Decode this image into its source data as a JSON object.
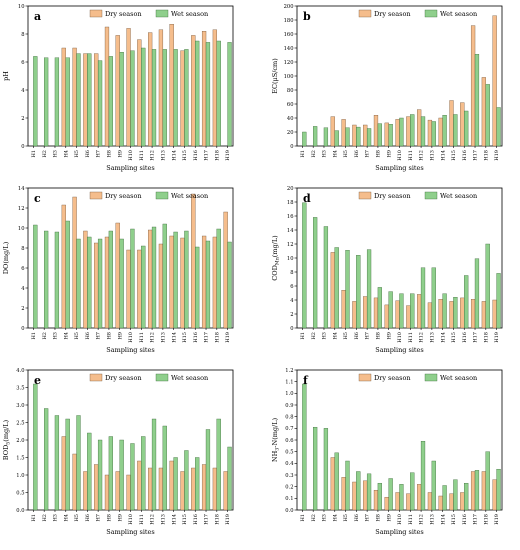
{
  "colors": {
    "dry": "#f5bd8c",
    "wet": "#8fcf8c"
  },
  "chart_data": [
    {
      "type": "bar",
      "panel": "a",
      "ylabel": "pH",
      "xlabel": "Sampling sites",
      "ylim": [
        0,
        10
      ],
      "yticks": [
        0,
        2,
        4,
        6,
        8,
        10
      ],
      "legend": "top-right",
      "categories": [
        "H1",
        "H2",
        "H3",
        "H4",
        "H5",
        "H6",
        "H7",
        "H8",
        "H9",
        "H10",
        "H11",
        "H12",
        "H13",
        "H14",
        "H15",
        "H16",
        "H17",
        "H18",
        "H19"
      ],
      "series": [
        {
          "name": "Dry season",
          "values": [
            null,
            null,
            null,
            7.0,
            7.0,
            6.6,
            6.6,
            8.5,
            7.9,
            8.4,
            7.6,
            8.1,
            8.3,
            8.7,
            6.8,
            7.9,
            8.2,
            8.3,
            null
          ]
        },
        {
          "name": "Wet season",
          "values": [
            6.4,
            6.3,
            6.3,
            6.3,
            6.6,
            6.6,
            6.1,
            6.4,
            6.7,
            6.8,
            7.0,
            6.9,
            6.9,
            6.9,
            6.9,
            7.5,
            7.4,
            7.5,
            7.4
          ]
        }
      ]
    },
    {
      "type": "bar",
      "panel": "b",
      "ylabel": "EC(μS/cm)",
      "xlabel": "Sampling sites",
      "ylim": [
        0,
        200
      ],
      "yticks": [
        0,
        20,
        40,
        60,
        80,
        100,
        120,
        140,
        160,
        180,
        200
      ],
      "legend": "top-right",
      "categories": [
        "H1",
        "H2",
        "H3",
        "H4",
        "H5",
        "H6",
        "H7",
        "H8",
        "H9",
        "H10",
        "H11",
        "H12",
        "H13",
        "H14",
        "H15",
        "H16",
        "H17",
        "H18",
        "H19"
      ],
      "series": [
        {
          "name": "Dry season",
          "values": [
            null,
            null,
            null,
            42,
            38,
            30,
            30,
            44,
            33,
            38,
            42,
            52,
            37,
            40,
            65,
            62,
            172,
            98,
            186
          ]
        },
        {
          "name": "Wet season",
          "values": [
            20,
            28,
            26,
            22,
            26,
            27,
            25,
            32,
            31,
            40,
            45,
            42,
            35,
            44,
            45,
            50,
            131,
            88,
            55
          ]
        }
      ]
    },
    {
      "type": "bar",
      "panel": "c",
      "ylabel": "DO(mg/L)",
      "xlabel": "Sampling sites",
      "ylim": [
        0,
        14
      ],
      "yticks": [
        0,
        2,
        4,
        6,
        8,
        10,
        12,
        14
      ],
      "legend": "top-right",
      "categories": [
        "H1",
        "H2",
        "H3",
        "H4",
        "H5",
        "H6",
        "H7",
        "H8",
        "H9",
        "H10",
        "H11",
        "H12",
        "H13",
        "H14",
        "H15",
        "H16",
        "H17",
        "H18",
        "H19"
      ],
      "series": [
        {
          "name": "Dry season",
          "values": [
            null,
            null,
            null,
            12.3,
            13.1,
            9.7,
            8.5,
            9.1,
            10.5,
            7.8,
            7.8,
            9.8,
            8.4,
            9.2,
            9.0,
            13.4,
            9.2,
            9.1,
            11.6
          ]
        },
        {
          "name": "Wet season",
          "values": [
            10.3,
            9.7,
            9.6,
            10.7,
            8.9,
            9.1,
            8.9,
            9.7,
            8.9,
            9.9,
            8.2,
            10.1,
            10.4,
            9.6,
            9.7,
            8.1,
            8.7,
            9.9,
            8.6
          ]
        }
      ]
    },
    {
      "type": "bar",
      "panel": "d",
      "ylabel": "COD_Mn(mg/L)",
      "xlabel": "Sampling sites",
      "ylim": [
        0,
        20
      ],
      "yticks": [
        0,
        2,
        4,
        6,
        8,
        10,
        12,
        14,
        16,
        18,
        20
      ],
      "legend": "top-right",
      "categories": [
        "H1",
        "H2",
        "H3",
        "H4",
        "H5",
        "H6",
        "H7",
        "H8",
        "H9",
        "H10",
        "H11",
        "H12",
        "H13",
        "H14",
        "H15",
        "H16",
        "H17",
        "H18",
        "H19"
      ],
      "series": [
        {
          "name": "Dry season",
          "values": [
            null,
            null,
            null,
            10.8,
            5.4,
            3.8,
            4.5,
            4.3,
            3.3,
            3.9,
            3.2,
            4.8,
            3.6,
            4.1,
            3.8,
            4.3,
            4.1,
            3.8,
            4.0
          ]
        },
        {
          "name": "Wet season",
          "values": [
            17.9,
            15.8,
            14.5,
            11.5,
            11.1,
            10.4,
            11.2,
            5.8,
            5.2,
            4.9,
            4.9,
            8.6,
            8.6,
            4.9,
            4.4,
            7.5,
            9.9,
            12.0,
            7.8
          ]
        }
      ]
    },
    {
      "type": "bar",
      "panel": "e",
      "ylabel": "BOD_5(mg/L)",
      "xlabel": "Sampling sites",
      "ylim": [
        0,
        4.0
      ],
      "yticks": [
        0,
        0.5,
        1.0,
        1.5,
        2.0,
        2.5,
        3.0,
        3.5,
        4.0
      ],
      "legend": "top-right",
      "categories": [
        "H1",
        "H2",
        "H3",
        "H4",
        "H5",
        "H6",
        "H7",
        "H8",
        "H9",
        "H10",
        "H11",
        "H12",
        "H13",
        "H14",
        "H15",
        "H16",
        "H17",
        "H18",
        "H19"
      ],
      "series": [
        {
          "name": "Dry season",
          "values": [
            null,
            null,
            null,
            2.1,
            1.6,
            1.1,
            1.3,
            1.0,
            1.1,
            1.0,
            1.4,
            1.2,
            1.2,
            1.4,
            1.1,
            1.2,
            1.3,
            1.2,
            1.1
          ]
        },
        {
          "name": "Wet season",
          "values": [
            3.6,
            2.9,
            2.7,
            2.6,
            2.7,
            2.2,
            2.0,
            2.1,
            2.0,
            1.9,
            2.1,
            2.6,
            2.4,
            1.5,
            1.7,
            1.5,
            2.3,
            2.6,
            1.8
          ]
        }
      ]
    },
    {
      "type": "bar",
      "panel": "f",
      "ylabel": "NH_3-N(mg/L)",
      "xlabel": "Sampling sites",
      "ylim": [
        0,
        1.2
      ],
      "yticks": [
        0,
        0.1,
        0.2,
        0.3,
        0.4,
        0.5,
        0.6,
        0.7,
        0.8,
        0.9,
        1.0,
        1.1,
        1.2
      ],
      "legend": "top-right",
      "categories": [
        "H1",
        "H2",
        "H3",
        "H4",
        "H5",
        "H6",
        "H7",
        "H8",
        "H9",
        "H10",
        "H11",
        "H12",
        "H13",
        "H14",
        "H15",
        "H16",
        "H17",
        "H18",
        "H19"
      ],
      "series": [
        {
          "name": "Dry season",
          "values": [
            null,
            null,
            null,
            0.45,
            0.28,
            0.24,
            0.25,
            0.17,
            0.11,
            0.15,
            0.14,
            0.22,
            0.15,
            0.12,
            0.14,
            0.15,
            0.33,
            0.33,
            0.26
          ]
        },
        {
          "name": "Wet season",
          "values": [
            1.08,
            0.71,
            0.7,
            0.49,
            0.42,
            0.33,
            0.31,
            0.23,
            0.27,
            0.22,
            0.32,
            0.59,
            0.42,
            0.21,
            0.26,
            0.23,
            0.34,
            0.5,
            0.35
          ]
        }
      ]
    }
  ]
}
